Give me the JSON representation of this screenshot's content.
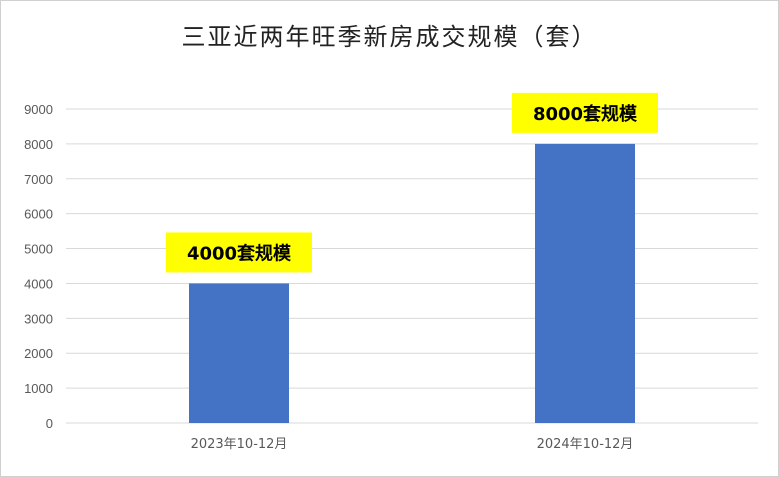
{
  "chart_data": {
    "type": "bar",
    "title": "三亚近两年旺季新房成交规模（套）",
    "categories": [
      "2023年10-12月",
      "2024年10-12月"
    ],
    "values": [
      4000,
      8000
    ],
    "data_labels": [
      "4000套规模",
      "8000套规模"
    ],
    "yticks": [
      "0",
      "1000",
      "2000",
      "3000",
      "4000",
      "5000",
      "6000",
      "7000",
      "8000",
      "9000"
    ],
    "ylim": [
      0,
      9000
    ],
    "grid": true,
    "bar_color": "#4472C4",
    "label_bg_color": "#FFFF00"
  }
}
